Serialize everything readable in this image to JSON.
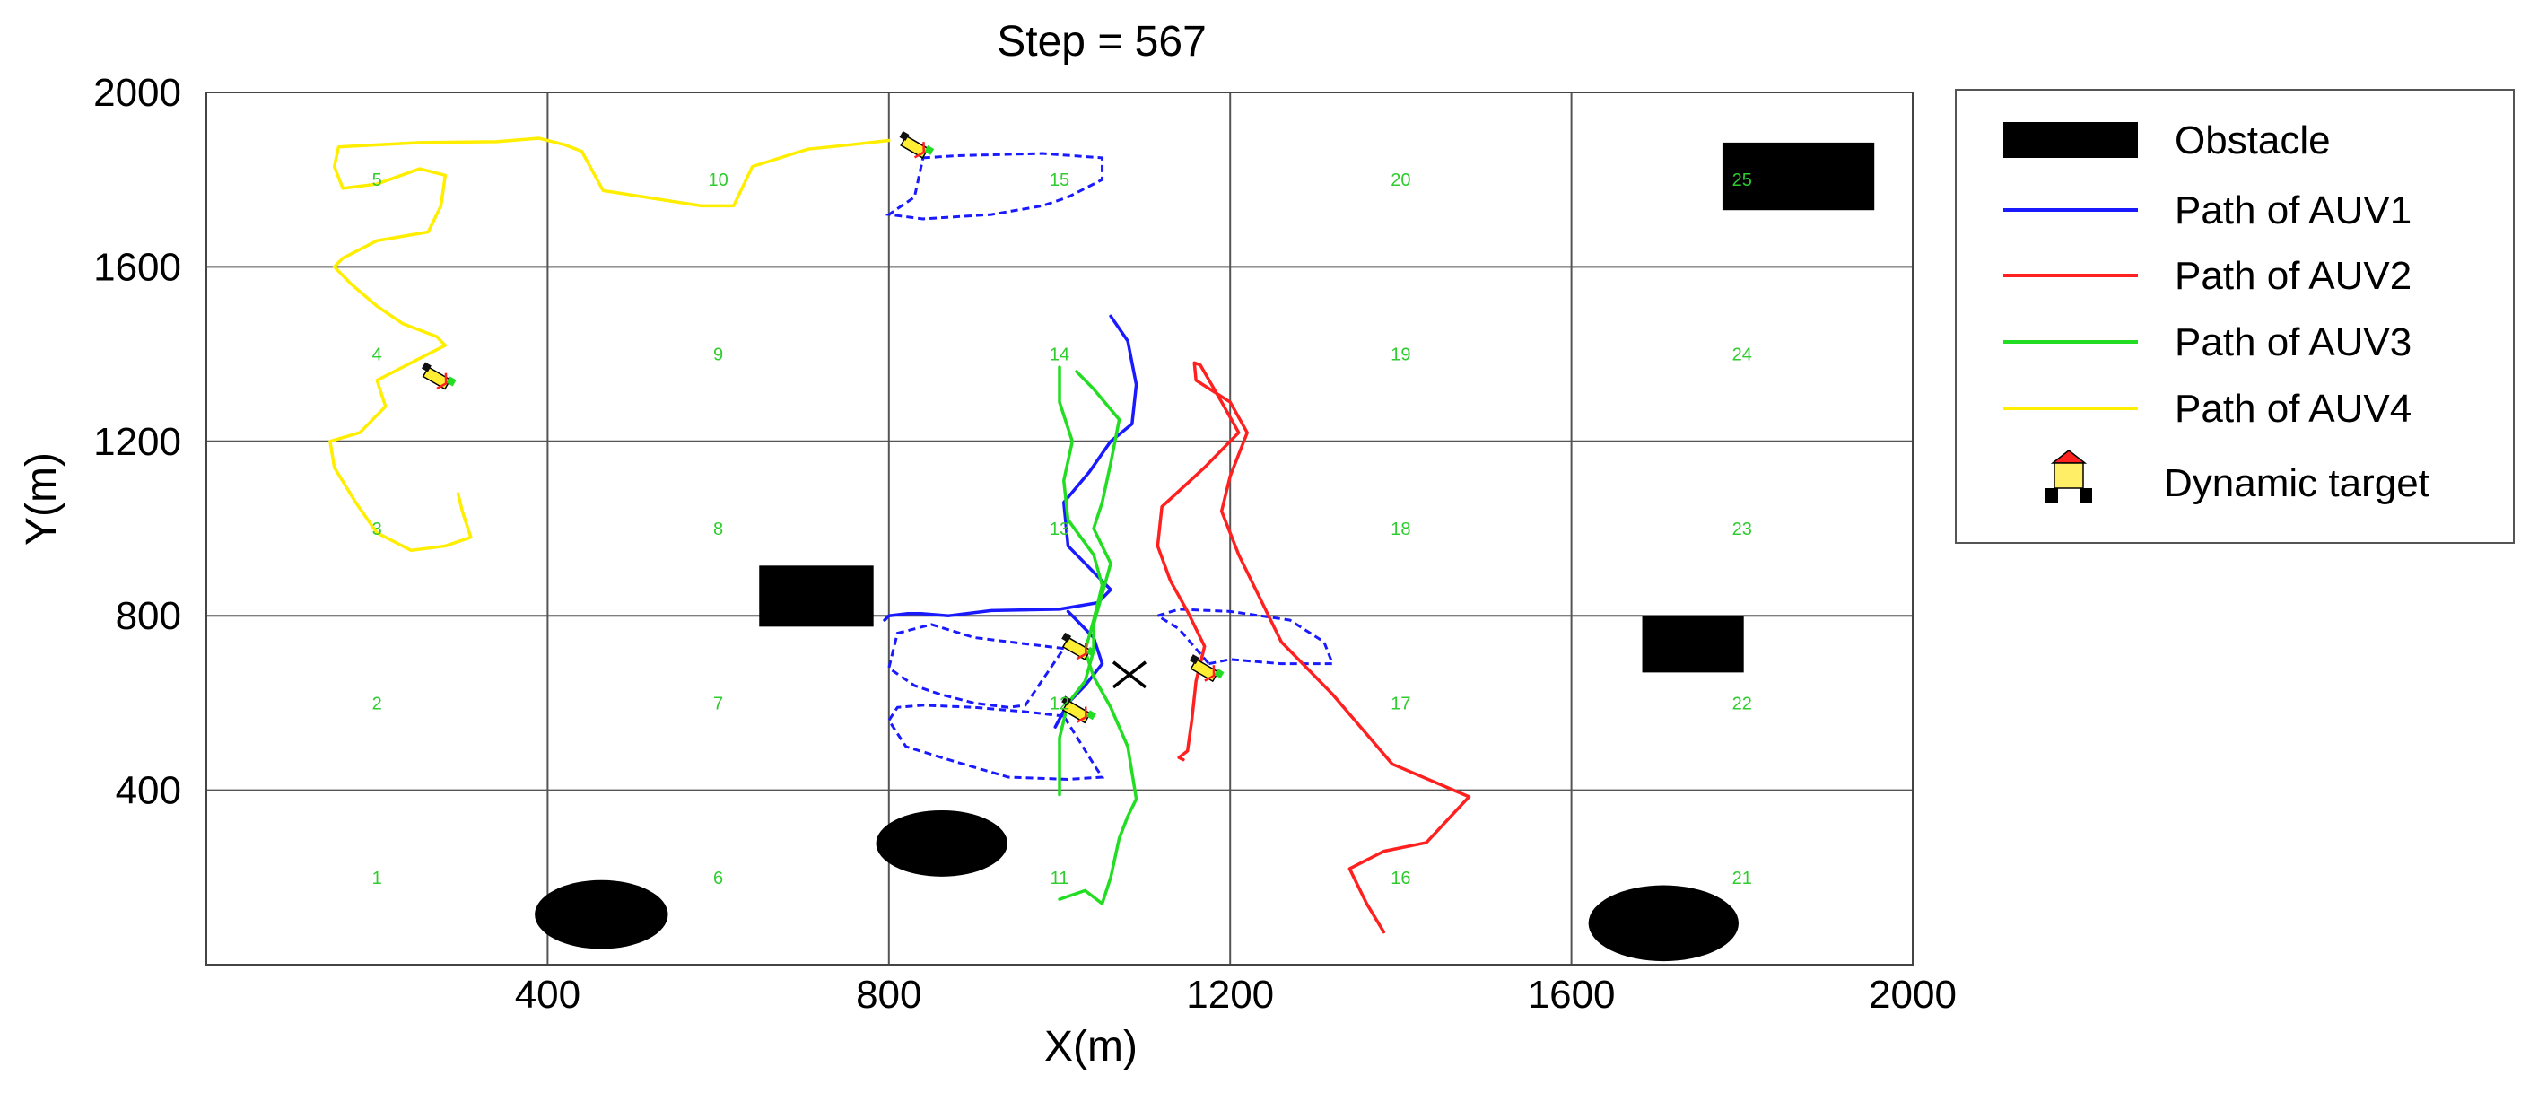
{
  "chart_data": {
    "type": "line",
    "title": "Step = 567",
    "xlabel": "X(m)",
    "ylabel": "Y(m)",
    "xlim": [
      0,
      2000
    ],
    "ylim": [
      0,
      2000
    ],
    "xticks": [
      "400",
      "800",
      "1200",
      "1600",
      "2000"
    ],
    "yticks": [
      "400",
      "800",
      "1200",
      "1600",
      "2000"
    ],
    "xtick_values": [
      400,
      800,
      1200,
      1600,
      2000
    ],
    "ytick_values": [
      400,
      800,
      1200,
      1600,
      2000
    ],
    "grid": true,
    "grid_lines_x": [
      400,
      800,
      1200,
      1600
    ],
    "grid_lines_y": [
      400,
      800,
      1200,
      1600
    ],
    "legend_placement": "right-outside-top",
    "cell_numbers": [
      {
        "label": "5",
        "x": 200,
        "y": 1800
      },
      {
        "label": "10",
        "x": 600,
        "y": 1800
      },
      {
        "label": "15",
        "x": 1000,
        "y": 1800
      },
      {
        "label": "20",
        "x": 1400,
        "y": 1800
      },
      {
        "label": "25",
        "x": 1800,
        "y": 1800
      },
      {
        "label": "4",
        "x": 200,
        "y": 1400
      },
      {
        "label": "9",
        "x": 600,
        "y": 1400
      },
      {
        "label": "14",
        "x": 1000,
        "y": 1400
      },
      {
        "label": "19",
        "x": 1400,
        "y": 1400
      },
      {
        "label": "24",
        "x": 1800,
        "y": 1400
      },
      {
        "label": "3",
        "x": 200,
        "y": 1000
      },
      {
        "label": "8",
        "x": 600,
        "y": 1000
      },
      {
        "label": "13",
        "x": 1000,
        "y": 1000
      },
      {
        "label": "18",
        "x": 1400,
        "y": 1000
      },
      {
        "label": "23",
        "x": 1800,
        "y": 1000
      },
      {
        "label": "2",
        "x": 200,
        "y": 600
      },
      {
        "label": "7",
        "x": 600,
        "y": 600
      },
      {
        "label": "12",
        "x": 1000,
        "y": 600
      },
      {
        "label": "17",
        "x": 1400,
        "y": 600
      },
      {
        "label": "22",
        "x": 1800,
        "y": 600
      },
      {
        "label": "1",
        "x": 200,
        "y": 200
      },
      {
        "label": "6",
        "x": 600,
        "y": 200
      },
      {
        "label": "11",
        "x": 1000,
        "y": 200
      },
      {
        "label": "16",
        "x": 1400,
        "y": 200
      },
      {
        "label": "21",
        "x": 1800,
        "y": 200
      }
    ],
    "obstacles": [
      {
        "shape": "rect",
        "x0": 648,
        "x1": 782,
        "y0": 775,
        "y1": 915
      },
      {
        "shape": "rect",
        "x0": 1777,
        "x1": 1955,
        "y0": 1730,
        "y1": 1885
      },
      {
        "shape": "rect",
        "x0": 1683,
        "x1": 1802,
        "y0": 670,
        "y1": 800
      },
      {
        "shape": "ellipse",
        "cx": 862,
        "cy": 278,
        "rx": 77,
        "ry": 76
      },
      {
        "shape": "ellipse",
        "cx": 463,
        "cy": 115,
        "rx": 78,
        "ry": 79
      },
      {
        "shape": "ellipse",
        "cx": 1708,
        "cy": 95,
        "rx": 88,
        "ry": 87
      }
    ],
    "series": [
      {
        "name": "Path of AUV1",
        "color": "#1a1aff",
        "points": [
          [
            1060,
            1487
          ],
          [
            1080,
            1430
          ],
          [
            1090,
            1330
          ],
          [
            1085,
            1240
          ],
          [
            1060,
            1200
          ],
          [
            1035,
            1130
          ],
          [
            1005,
            1060
          ],
          [
            1010,
            960
          ],
          [
            1040,
            900
          ],
          [
            1060,
            860
          ],
          [
            1045,
            830
          ],
          [
            1000,
            815
          ],
          [
            920,
            812
          ],
          [
            870,
            800
          ],
          [
            838,
            805
          ],
          [
            822,
            805
          ],
          [
            800,
            800
          ],
          [
            795,
            790
          ]
        ]
      },
      {
        "name": "Path of AUV1 (upper)",
        "color": "#1a1aff",
        "points": [
          [
            1010,
            810
          ],
          [
            1040,
            750
          ],
          [
            1050,
            690
          ],
          [
            1030,
            640
          ],
          [
            1010,
            600
          ],
          [
            995,
            545
          ]
        ]
      },
      {
        "name": "Path of AUV2",
        "color": "#ff2020",
        "points": [
          [
            1380,
            75
          ],
          [
            1360,
            140
          ],
          [
            1340,
            220
          ],
          [
            1380,
            260
          ],
          [
            1430,
            280
          ],
          [
            1480,
            385
          ],
          [
            1390,
            460
          ],
          [
            1320,
            620
          ],
          [
            1260,
            740
          ],
          [
            1230,
            860
          ],
          [
            1210,
            940
          ],
          [
            1190,
            1040
          ],
          [
            1200,
            1120
          ],
          [
            1220,
            1220
          ],
          [
            1200,
            1290
          ],
          [
            1160,
            1340
          ],
          [
            1158,
            1380
          ],
          [
            1165,
            1375
          ],
          [
            1190,
            1290
          ],
          [
            1210,
            1220
          ],
          [
            1170,
            1140
          ],
          [
            1120,
            1050
          ],
          [
            1115,
            960
          ],
          [
            1130,
            880
          ],
          [
            1150,
            810
          ],
          [
            1170,
            730
          ],
          [
            1160,
            650
          ],
          [
            1155,
            560
          ],
          [
            1150,
            490
          ],
          [
            1140,
            475
          ],
          [
            1145,
            470
          ]
        ]
      },
      {
        "name": "Path of AUV3",
        "color": "#22dd22",
        "points": [
          [
            1020,
            1360
          ],
          [
            1040,
            1320
          ],
          [
            1070,
            1250
          ],
          [
            1060,
            1150
          ],
          [
            1050,
            1060
          ],
          [
            1040,
            1000
          ],
          [
            1060,
            920
          ],
          [
            1050,
            850
          ],
          [
            1040,
            780
          ],
          [
            1040,
            720
          ],
          [
            1030,
            650
          ],
          [
            1010,
            600
          ],
          [
            1000,
            520
          ],
          [
            1000,
            450
          ],
          [
            1000,
            390
          ]
        ]
      },
      {
        "name": "Path of AUV3 (lower)",
        "color": "#22dd22",
        "points": [
          [
            1000,
            1370
          ],
          [
            1000,
            1290
          ],
          [
            1015,
            1200
          ],
          [
            1005,
            1110
          ],
          [
            1010,
            1020
          ],
          [
            1040,
            940
          ],
          [
            1050,
            870
          ],
          [
            1040,
            790
          ],
          [
            1030,
            720
          ],
          [
            1040,
            660
          ],
          [
            1060,
            590
          ],
          [
            1080,
            500
          ],
          [
            1090,
            380
          ],
          [
            1080,
            340
          ],
          [
            1070,
            290
          ],
          [
            1060,
            200
          ],
          [
            1050,
            140
          ],
          [
            1030,
            170
          ],
          [
            1000,
            150
          ]
        ]
      },
      {
        "name": "Path of AUV4",
        "color": "#ffee00",
        "points": [
          [
            800,
            1890
          ],
          [
            755,
            1880
          ],
          [
            705,
            1870
          ],
          [
            640,
            1830
          ],
          [
            618,
            1740
          ],
          [
            580,
            1740
          ],
          [
            465,
            1775
          ],
          [
            440,
            1865
          ],
          [
            420,
            1880
          ],
          [
            390,
            1895
          ],
          [
            340,
            1887
          ],
          [
            250,
            1885
          ],
          [
            155,
            1875
          ],
          [
            150,
            1830
          ],
          [
            160,
            1780
          ],
          [
            200,
            1790
          ],
          [
            250,
            1825
          ],
          [
            280,
            1810
          ],
          [
            275,
            1740
          ],
          [
            260,
            1680
          ],
          [
            200,
            1660
          ],
          [
            160,
            1620
          ],
          [
            150,
            1600
          ],
          [
            170,
            1560
          ],
          [
            200,
            1510
          ],
          [
            230,
            1470
          ],
          [
            270,
            1440
          ],
          [
            280,
            1420
          ],
          [
            260,
            1400
          ],
          [
            200,
            1340
          ],
          [
            210,
            1280
          ],
          [
            180,
            1220
          ],
          [
            145,
            1200
          ],
          [
            150,
            1140
          ],
          [
            175,
            1060
          ],
          [
            200,
            990
          ],
          [
            240,
            950
          ],
          [
            280,
            960
          ],
          [
            310,
            980
          ],
          [
            300,
            1040
          ],
          [
            295,
            1080
          ]
        ]
      }
    ],
    "sensor_fans": [
      {
        "color": "#1a1aff",
        "points": [
          [
            840,
            1850
          ],
          [
            880,
            1855
          ],
          [
            980,
            1860
          ],
          [
            1050,
            1850
          ],
          [
            1050,
            1800
          ],
          [
            1010,
            1760
          ],
          [
            980,
            1740
          ],
          [
            920,
            1720
          ],
          [
            840,
            1710
          ],
          [
            800,
            1720
          ],
          [
            830,
            1760
          ],
          [
            840,
            1850
          ]
        ]
      },
      {
        "color": "#1a1aff",
        "points": [
          [
            1005,
            725
          ],
          [
            900,
            750
          ],
          [
            850,
            780
          ],
          [
            810,
            760
          ],
          [
            800,
            680
          ],
          [
            830,
            640
          ],
          [
            860,
            620
          ],
          [
            900,
            600
          ],
          [
            940,
            590
          ],
          [
            960,
            595
          ],
          [
            1005,
            725
          ]
        ]
      },
      {
        "color": "#1a1aff",
        "points": [
          [
            1005,
            570
          ],
          [
            960,
            580
          ],
          [
            900,
            590
          ],
          [
            840,
            595
          ],
          [
            810,
            590
          ],
          [
            800,
            560
          ],
          [
            820,
            500
          ],
          [
            870,
            470
          ],
          [
            940,
            430
          ],
          [
            1010,
            425
          ],
          [
            1050,
            430
          ],
          [
            1040,
            460
          ],
          [
            1005,
            570
          ]
        ]
      },
      {
        "color": "#1a1aff",
        "points": [
          [
            1175,
            690
          ],
          [
            1200,
            700
          ],
          [
            1260,
            690
          ],
          [
            1320,
            690
          ],
          [
            1310,
            740
          ],
          [
            1270,
            790
          ],
          [
            1200,
            810
          ],
          [
            1140,
            815
          ],
          [
            1115,
            800
          ],
          [
            1140,
            770
          ],
          [
            1175,
            690
          ]
        ]
      }
    ],
    "auv_markers": [
      {
        "x": 830,
        "y": 1875
      },
      {
        "x": 270,
        "y": 1345
      },
      {
        "x": 1020,
        "y": 725
      },
      {
        "x": 1020,
        "y": 580
      },
      {
        "x": 1170,
        "y": 675
      }
    ],
    "target_cross": {
      "x": 1082,
      "y": 665
    },
    "legend": [
      {
        "label": "Obstacle",
        "kind": "block"
      },
      {
        "label": "Path of AUV1",
        "kind": "line",
        "color": "#1a1aff"
      },
      {
        "label": "Path of AUV2",
        "kind": "line",
        "color": "#ff2020"
      },
      {
        "label": "Path of AUV3",
        "kind": "line",
        "color": "#22dd22"
      },
      {
        "label": "Path of AUV4",
        "kind": "line",
        "color": "#ffee00"
      },
      {
        "label": "Dynamic target",
        "kind": "target-icon"
      }
    ]
  }
}
